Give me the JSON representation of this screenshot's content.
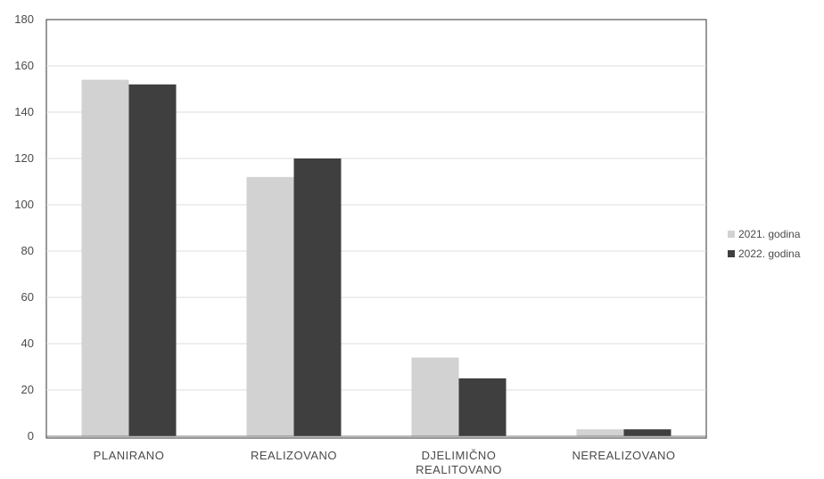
{
  "chart_data": {
    "type": "bar",
    "categories": [
      [
        "PLANIRANO"
      ],
      [
        "REALIZOVANO"
      ],
      [
        "DJELIMIČNO",
        "REALITOVANO"
      ],
      [
        "NEREALIZOVANO"
      ]
    ],
    "series": [
      {
        "name": "2021. godina",
        "values": [
          154,
          112,
          34,
          3
        ],
        "color": "#d2d2d2"
      },
      {
        "name": "2022. godina",
        "values": [
          152,
          120,
          25,
          3
        ],
        "color": "#3f3f3f"
      }
    ],
    "yticks": [
      0,
      20,
      40,
      60,
      80,
      100,
      120,
      140,
      160,
      180
    ],
    "ylim": [
      0,
      180
    ],
    "grid": true,
    "legend_position": "right"
  }
}
